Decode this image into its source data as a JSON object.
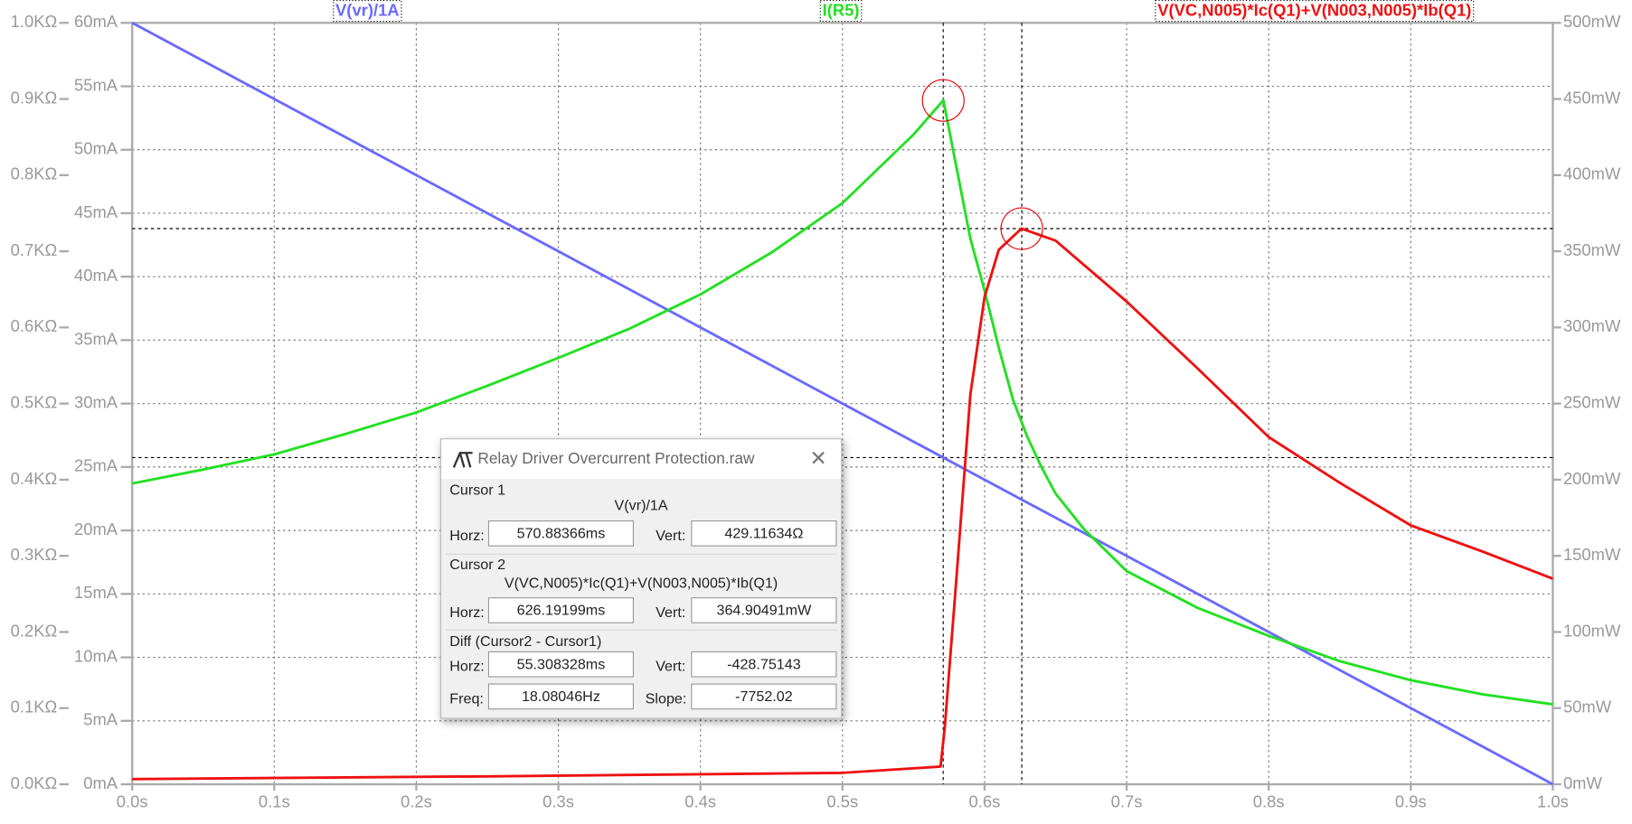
{
  "chart_data": {
    "type": "line",
    "xlim": [
      0,
      1
    ],
    "xticks": [
      {
        "value": 0,
        "label": "0.0s"
      },
      {
        "value": 0.1,
        "label": "0.1s"
      },
      {
        "value": 0.2,
        "label": "0.2s"
      },
      {
        "value": 0.3,
        "label": "0.3s"
      },
      {
        "value": 0.4,
        "label": "0.4s"
      },
      {
        "value": 0.5,
        "label": "0.5s"
      },
      {
        "value": 0.6,
        "label": "0.6s"
      },
      {
        "value": 0.7,
        "label": "0.7s"
      },
      {
        "value": 0.8,
        "label": "0.8s"
      },
      {
        "value": 0.9,
        "label": "0.9s"
      },
      {
        "value": 1,
        "label": "1.0s"
      }
    ],
    "ylim": [
      0,
      1000
    ],
    "yticks": [
      {
        "value": 0,
        "label": "0.0KΩ"
      },
      {
        "value": 100,
        "label": "0.1KΩ"
      },
      {
        "value": 200,
        "label": "0.2KΩ"
      },
      {
        "value": 300,
        "label": "0.3KΩ"
      },
      {
        "value": 400,
        "label": "0.4KΩ"
      },
      {
        "value": 500,
        "label": "0.5KΩ"
      },
      {
        "value": 600,
        "label": "0.6KΩ"
      },
      {
        "value": 700,
        "label": "0.7KΩ"
      },
      {
        "value": 800,
        "label": "0.8KΩ"
      },
      {
        "value": 900,
        "label": "0.9KΩ"
      },
      {
        "value": 1000,
        "label": "1.0KΩ"
      }
    ],
    "y2lim": [
      0,
      60
    ],
    "y2ticks": [
      {
        "value": 0,
        "label": "0mA"
      },
      {
        "value": 5,
        "label": "5mA"
      },
      {
        "value": 10,
        "label": "10mA"
      },
      {
        "value": 15,
        "label": "15mA"
      },
      {
        "value": 20,
        "label": "20mA"
      },
      {
        "value": 25,
        "label": "25mA"
      },
      {
        "value": 30,
        "label": "30mA"
      },
      {
        "value": 35,
        "label": "35mA"
      },
      {
        "value": 40,
        "label": "40mA"
      },
      {
        "value": 45,
        "label": "45mA"
      },
      {
        "value": 50,
        "label": "50mA"
      },
      {
        "value": 55,
        "label": "55mA"
      },
      {
        "value": 60,
        "label": "60mA"
      }
    ],
    "y3lim": [
      0,
      500
    ],
    "y3ticks": [
      {
        "value": 0,
        "label": "0mW"
      },
      {
        "value": 50,
        "label": "50mW"
      },
      {
        "value": 100,
        "label": "100mW"
      },
      {
        "value": 150,
        "label": "150mW"
      },
      {
        "value": 200,
        "label": "200mW"
      },
      {
        "value": 250,
        "label": "250mW"
      },
      {
        "value": 300,
        "label": "300mW"
      },
      {
        "value": 350,
        "label": "350mW"
      },
      {
        "value": 400,
        "label": "400mW"
      },
      {
        "value": 450,
        "label": "450mW"
      },
      {
        "value": 500,
        "label": "500mW"
      }
    ],
    "grid": true,
    "series": [
      {
        "name": "V(vr)/1A",
        "color": "#6a6aff",
        "axis": "y",
        "x": [
          0,
          1
        ],
        "values": [
          1000,
          0
        ]
      },
      {
        "name": "I(R5)",
        "color": "#22e022",
        "axis": "y2",
        "x": [
          0,
          0.05,
          0.1,
          0.15,
          0.2,
          0.25,
          0.3,
          0.35,
          0.4,
          0.45,
          0.5,
          0.55,
          0.571,
          0.59,
          0.6,
          0.61,
          0.62,
          0.63,
          0.64,
          0.65,
          0.67,
          0.7,
          0.75,
          0.8,
          0.85,
          0.9,
          0.95,
          1
        ],
        "values": [
          23.7,
          24.8,
          26.0,
          27.6,
          29.3,
          31.4,
          33.6,
          35.9,
          38.6,
          41.9,
          45.8,
          51.2,
          53.9,
          43.0,
          38.9,
          34.4,
          30.3,
          27.4,
          25.0,
          22.9,
          20.1,
          16.8,
          13.9,
          11.7,
          9.7,
          8.2,
          7.1,
          6.3
        ]
      },
      {
        "name": "V(VC,N005)*Ic(Q1)+V(N003,N005)*Ib(Q1)",
        "color": "#ee1111",
        "axis": "y3",
        "x": [
          0,
          0.25,
          0.5,
          0.569,
          0.572,
          0.58,
          0.59,
          0.6,
          0.61,
          0.626,
          0.65,
          0.7,
          0.75,
          0.8,
          0.85,
          0.9,
          0.95,
          1
        ],
        "values": [
          3.4,
          5.2,
          7.5,
          11.6,
          37.5,
          133,
          256,
          320,
          351,
          364.9,
          357,
          317,
          273,
          228,
          198,
          170,
          153,
          135
        ]
      }
    ],
    "cursors": [
      {
        "x": 0.57088366,
        "y": 429.11634,
        "axis": "y",
        "series": 1
      },
      {
        "x": 0.62619199,
        "y": 364.90491,
        "axis": "y3",
        "series": 2
      }
    ]
  },
  "dialog": {
    "title": "Relay Driver Overcurrent Protection.raw",
    "cursor1": {
      "label": "Cursor 1",
      "trace": "V(vr)/1A",
      "horz_label": "Horz:",
      "horz": "570.88366ms",
      "vert_label": "Vert:",
      "vert": "429.11634Ω"
    },
    "cursor2": {
      "label": "Cursor 2",
      "trace": "V(VC,N005)*Ic(Q1)+V(N003,N005)*Ib(Q1)",
      "horz_label": "Horz:",
      "horz": "626.19199ms",
      "vert_label": "Vert:",
      "vert": "364.90491mW"
    },
    "diff": {
      "label": "Diff (Cursor2 - Cursor1)",
      "horz_label": "Horz:",
      "horz": "55.308328ms",
      "vert_label": "Vert:",
      "vert": "-428.75143",
      "freq_label": "Freq:",
      "freq": "18.08046Hz",
      "slope_label": "Slope:",
      "slope": "-7752.02"
    }
  }
}
